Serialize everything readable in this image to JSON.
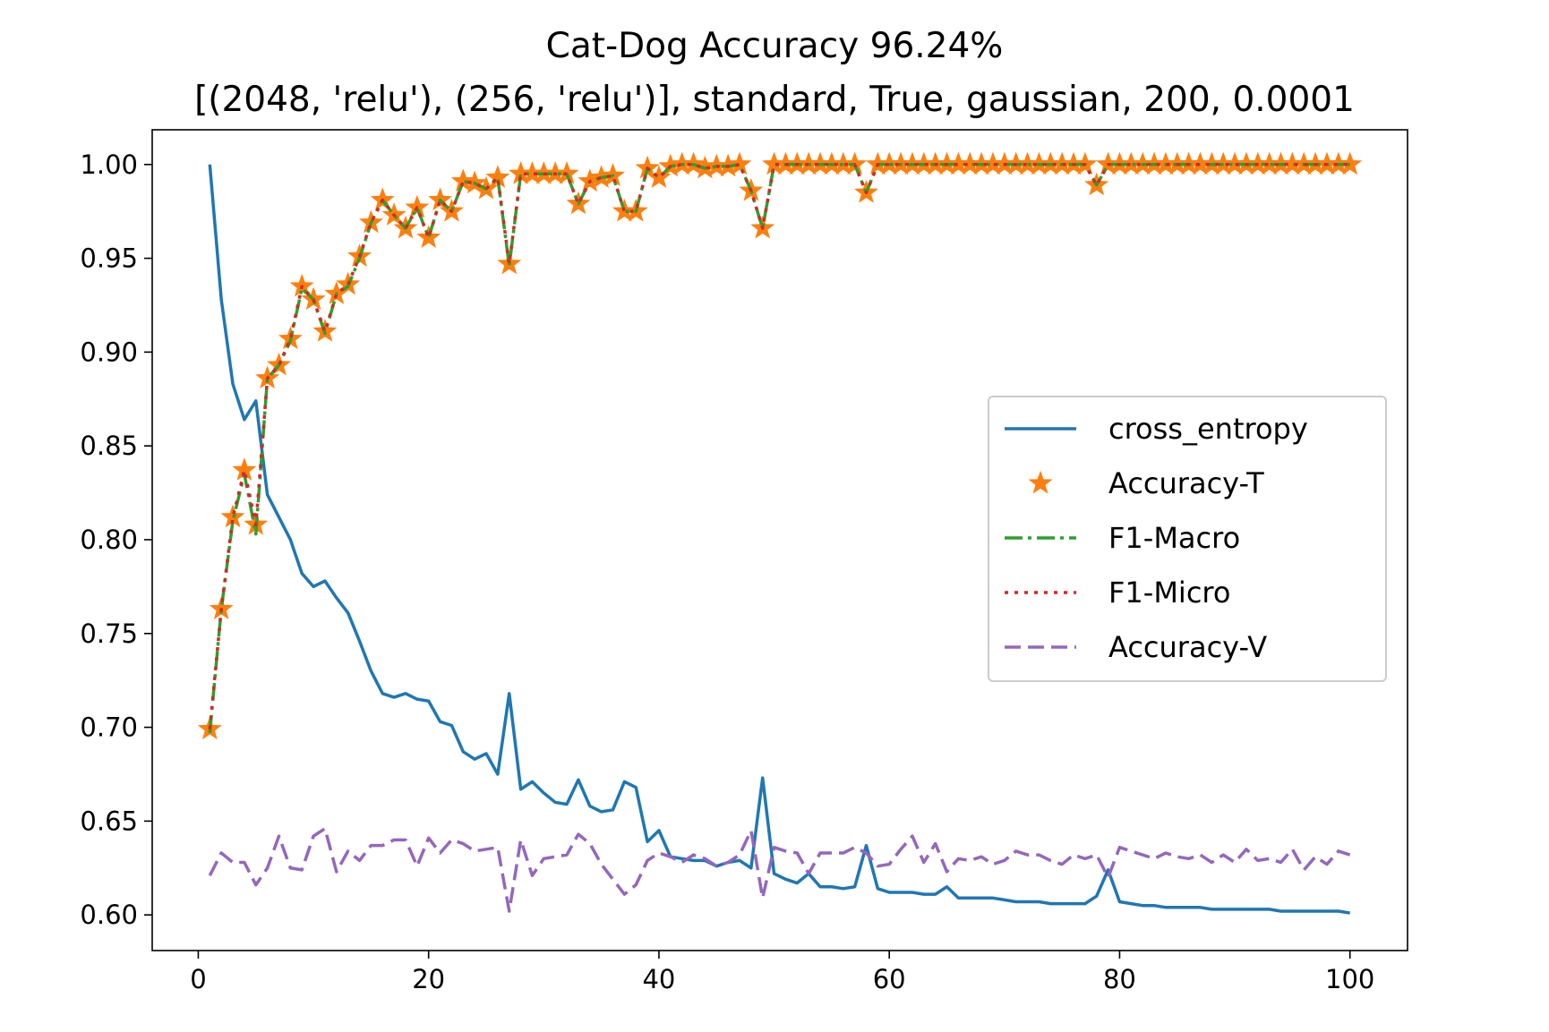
{
  "chart_data": {
    "type": "line",
    "title": "Cat-Dog Accuracy 96.24%",
    "subtitle": "[(2048, 'relu'), (256, 'relu')], standard, True, gaussian, 200, 0.0001",
    "xlabel": "",
    "ylabel": "",
    "xlim": [
      -4,
      105
    ],
    "ylim": [
      0.581,
      1.0185
    ],
    "xticks": [
      0,
      20,
      40,
      60,
      80,
      100
    ],
    "yticks": [
      0.6,
      0.65,
      0.7,
      0.75,
      0.8,
      0.85,
      0.9,
      0.95,
      1.0
    ],
    "xtick_labels": [
      "0",
      "20",
      "40",
      "60",
      "80",
      "100"
    ],
    "ytick_labels": [
      "0.60",
      "0.65",
      "0.70",
      "0.75",
      "0.80",
      "0.85",
      "0.90",
      "0.95",
      "1.00"
    ],
    "grid": false,
    "legend_position": "center-right",
    "x": [
      1,
      2,
      3,
      4,
      5,
      6,
      7,
      8,
      9,
      10,
      11,
      12,
      13,
      14,
      15,
      16,
      17,
      18,
      19,
      20,
      21,
      22,
      23,
      24,
      25,
      26,
      27,
      28,
      29,
      30,
      31,
      32,
      33,
      34,
      35,
      36,
      37,
      38,
      39,
      40,
      41,
      42,
      43,
      44,
      45,
      46,
      47,
      48,
      49,
      50,
      51,
      52,
      53,
      54,
      55,
      56,
      57,
      58,
      59,
      60,
      61,
      62,
      63,
      64,
      65,
      66,
      67,
      68,
      69,
      70,
      71,
      72,
      73,
      74,
      75,
      76,
      77,
      78,
      79,
      80,
      81,
      82,
      83,
      84,
      85,
      86,
      87,
      88,
      89,
      90,
      91,
      92,
      93,
      94,
      95,
      96,
      97,
      98,
      99,
      100
    ],
    "series": [
      {
        "name": "cross_entropy",
        "color": "#1f77b4",
        "style": "solid",
        "values": [
          1.0,
          0.928,
          0.883,
          0.864,
          0.874,
          0.824,
          0.812,
          0.8,
          0.782,
          0.775,
          0.778,
          0.769,
          0.761,
          0.746,
          0.73,
          0.718,
          0.716,
          0.718,
          0.715,
          0.714,
          0.703,
          0.701,
          0.687,
          0.683,
          0.686,
          0.675,
          0.718,
          0.667,
          0.671,
          0.665,
          0.66,
          0.659,
          0.672,
          0.658,
          0.655,
          0.656,
          0.671,
          0.668,
          0.639,
          0.645,
          0.631,
          0.63,
          0.629,
          0.629,
          0.626,
          0.628,
          0.629,
          0.625,
          0.673,
          0.622,
          0.619,
          0.617,
          0.622,
          0.615,
          0.615,
          0.614,
          0.615,
          0.637,
          0.614,
          0.612,
          0.612,
          0.612,
          0.611,
          0.611,
          0.615,
          0.609,
          0.609,
          0.609,
          0.609,
          0.608,
          0.607,
          0.607,
          0.607,
          0.606,
          0.606,
          0.606,
          0.606,
          0.61,
          0.624,
          0.607,
          0.606,
          0.605,
          0.605,
          0.604,
          0.604,
          0.604,
          0.604,
          0.603,
          0.603,
          0.603,
          0.603,
          0.603,
          0.603,
          0.602,
          0.602,
          0.602,
          0.602,
          0.602,
          0.602,
          0.601
        ]
      },
      {
        "name": "Accuracy-T",
        "color": "#ff7f0e",
        "style": "star",
        "values": [
          0.699,
          0.763,
          0.812,
          0.837,
          0.808,
          0.886,
          0.893,
          0.907,
          0.935,
          0.928,
          0.911,
          0.931,
          0.936,
          0.951,
          0.969,
          0.981,
          0.973,
          0.966,
          0.977,
          0.961,
          0.981,
          0.975,
          0.991,
          0.99,
          0.987,
          0.993,
          0.947,
          0.995,
          0.995,
          0.995,
          0.995,
          0.995,
          0.979,
          0.991,
          0.993,
          0.994,
          0.975,
          0.975,
          0.998,
          0.993,
          0.999,
          1.0,
          1.0,
          0.998,
          0.999,
          0.999,
          1.0,
          0.986,
          0.966,
          1.0,
          1.0,
          1.0,
          1.0,
          1.0,
          1.0,
          1.0,
          1.0,
          0.985,
          1.0,
          1.0,
          1.0,
          1.0,
          1.0,
          1.0,
          1.0,
          1.0,
          1.0,
          1.0,
          1.0,
          1.0,
          1.0,
          1.0,
          1.0,
          1.0,
          1.0,
          1.0,
          1.0,
          0.989,
          1.0,
          1.0,
          1.0,
          1.0,
          1.0,
          1.0,
          1.0,
          1.0,
          1.0,
          1.0,
          1.0,
          1.0,
          1.0,
          1.0,
          1.0,
          1.0,
          1.0,
          1.0,
          1.0,
          1.0,
          1.0,
          1.0
        ]
      },
      {
        "name": "F1-Macro",
        "color": "#2ca02c",
        "style": "dashdot",
        "values": [
          0.697,
          0.763,
          0.81,
          0.835,
          0.803,
          0.886,
          0.893,
          0.906,
          0.934,
          0.928,
          0.91,
          0.931,
          0.935,
          0.95,
          0.969,
          0.981,
          0.973,
          0.966,
          0.977,
          0.961,
          0.981,
          0.975,
          0.991,
          0.99,
          0.987,
          0.993,
          0.946,
          0.995,
          0.995,
          0.995,
          0.995,
          0.995,
          0.979,
          0.991,
          0.993,
          0.994,
          0.975,
          0.975,
          0.998,
          0.993,
          0.999,
          1.0,
          1.0,
          0.998,
          0.999,
          0.999,
          1.0,
          0.986,
          0.966,
          1.0,
          1.0,
          1.0,
          1.0,
          1.0,
          1.0,
          1.0,
          1.0,
          0.985,
          1.0,
          1.0,
          1.0,
          1.0,
          1.0,
          1.0,
          1.0,
          1.0,
          1.0,
          1.0,
          1.0,
          1.0,
          1.0,
          1.0,
          1.0,
          1.0,
          1.0,
          1.0,
          1.0,
          0.989,
          1.0,
          1.0,
          1.0,
          1.0,
          1.0,
          1.0,
          1.0,
          1.0,
          1.0,
          1.0,
          1.0,
          1.0,
          1.0,
          1.0,
          1.0,
          1.0,
          1.0,
          1.0,
          1.0,
          1.0,
          1.0,
          1.0
        ]
      },
      {
        "name": "F1-Micro",
        "color": "#d62728",
        "style": "dotted",
        "values": [
          0.699,
          0.763,
          0.812,
          0.837,
          0.808,
          0.886,
          0.893,
          0.907,
          0.935,
          0.928,
          0.911,
          0.931,
          0.936,
          0.951,
          0.969,
          0.981,
          0.973,
          0.966,
          0.977,
          0.961,
          0.981,
          0.975,
          0.991,
          0.99,
          0.987,
          0.993,
          0.947,
          0.995,
          0.995,
          0.995,
          0.995,
          0.995,
          0.979,
          0.991,
          0.993,
          0.994,
          0.975,
          0.975,
          0.998,
          0.993,
          0.999,
          1.0,
          1.0,
          0.998,
          0.999,
          0.999,
          1.0,
          0.986,
          0.966,
          1.0,
          1.0,
          1.0,
          1.0,
          1.0,
          1.0,
          1.0,
          1.0,
          0.985,
          1.0,
          1.0,
          1.0,
          1.0,
          1.0,
          1.0,
          1.0,
          1.0,
          1.0,
          1.0,
          1.0,
          1.0,
          1.0,
          1.0,
          1.0,
          1.0,
          1.0,
          1.0,
          1.0,
          0.989,
          1.0,
          1.0,
          1.0,
          1.0,
          1.0,
          1.0,
          1.0,
          1.0,
          1.0,
          1.0,
          1.0,
          1.0,
          1.0,
          1.0,
          1.0,
          1.0,
          1.0,
          1.0,
          1.0,
          1.0,
          1.0,
          1.0
        ]
      },
      {
        "name": "Accuracy-V",
        "color": "#9467bd",
        "style": "dashed",
        "values": [
          0.621,
          0.633,
          0.628,
          0.628,
          0.616,
          0.625,
          0.642,
          0.625,
          0.624,
          0.642,
          0.646,
          0.623,
          0.634,
          0.629,
          0.637,
          0.637,
          0.64,
          0.64,
          0.626,
          0.641,
          0.633,
          0.64,
          0.638,
          0.634,
          0.635,
          0.636,
          0.602,
          0.64,
          0.621,
          0.63,
          0.631,
          0.632,
          0.643,
          0.638,
          0.627,
          0.619,
          0.611,
          0.616,
          0.629,
          0.633,
          0.631,
          0.628,
          0.632,
          0.63,
          0.626,
          0.628,
          0.632,
          0.645,
          0.609,
          0.636,
          0.634,
          0.633,
          0.622,
          0.633,
          0.633,
          0.633,
          0.636,
          0.633,
          0.626,
          0.627,
          0.635,
          0.642,
          0.628,
          0.638,
          0.623,
          0.63,
          0.629,
          0.631,
          0.627,
          0.629,
          0.634,
          0.632,
          0.632,
          0.629,
          0.627,
          0.632,
          0.63,
          0.632,
          0.62,
          0.636,
          0.634,
          0.632,
          0.63,
          0.633,
          0.631,
          0.63,
          0.632,
          0.628,
          0.632,
          0.628,
          0.635,
          0.629,
          0.63,
          0.628,
          0.635,
          0.624,
          0.631,
          0.627,
          0.634,
          0.632
        ]
      }
    ]
  }
}
